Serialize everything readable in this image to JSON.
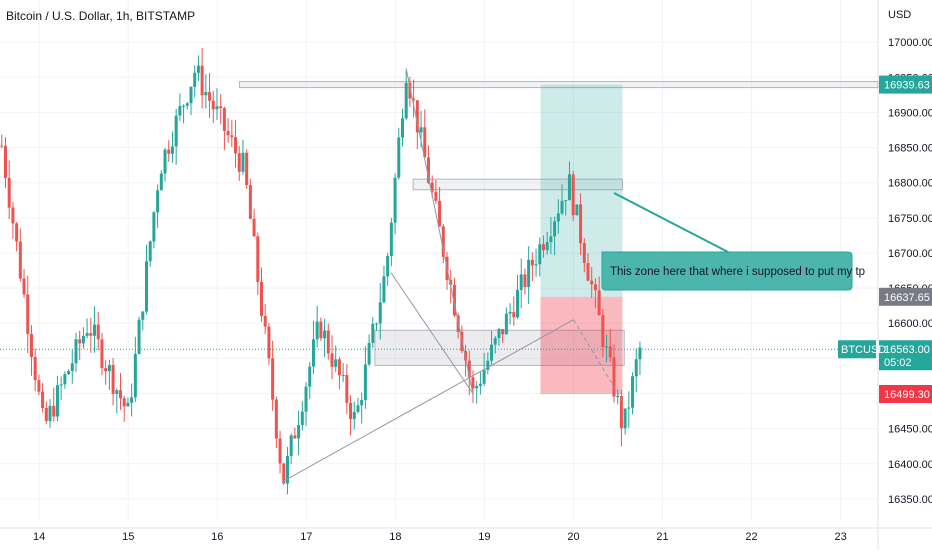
{
  "header": {
    "symbol_title": "Bitcoin / U.S. Dollar, 1h, BITSTAMP"
  },
  "chart_data": {
    "type": "candlestick",
    "currency_label": "USD",
    "ylim": [
      16320,
      17060
    ],
    "y_ticks": [
      17000,
      16950,
      16900,
      16850,
      16800,
      16750,
      16700,
      16650,
      16600,
      16550,
      16500,
      16450,
      16400,
      16350
    ],
    "x_range": [
      13.56,
      23.42
    ],
    "x_ticks": [
      14,
      15,
      16,
      17,
      18,
      19,
      20,
      21,
      22,
      23
    ],
    "price_tags": {
      "resistance": "16939.63",
      "stop": "16637.65",
      "last": "16563.00",
      "countdown": "05:02",
      "ticker": "BTCUSD",
      "low": "16499.30"
    },
    "callout_text": "This zone here that where i supposed to put my tp",
    "colors": {
      "up": "#26a69a",
      "down": "#ef5350",
      "tag_last": "#26a69a",
      "tag_stop": "#787b86",
      "tag_low": "#f23645",
      "tag_resistance": "#26a69a",
      "callout_bg": "#4db6ac",
      "profit_zone": "rgba(38,166,154,0.22)",
      "loss_zone": "rgba(242,54,69,0.35)"
    },
    "key_points": [
      {
        "x": 16.74,
        "y": 16375
      },
      {
        "x": 18.12,
        "y": 16963
      },
      {
        "x": 18.87,
        "y": 16500
      },
      {
        "x": 19.95,
        "y": 16800
      },
      {
        "x": 20.56,
        "y": 16448
      },
      {
        "x": 20.74,
        "y": 16563
      }
    ]
  }
}
